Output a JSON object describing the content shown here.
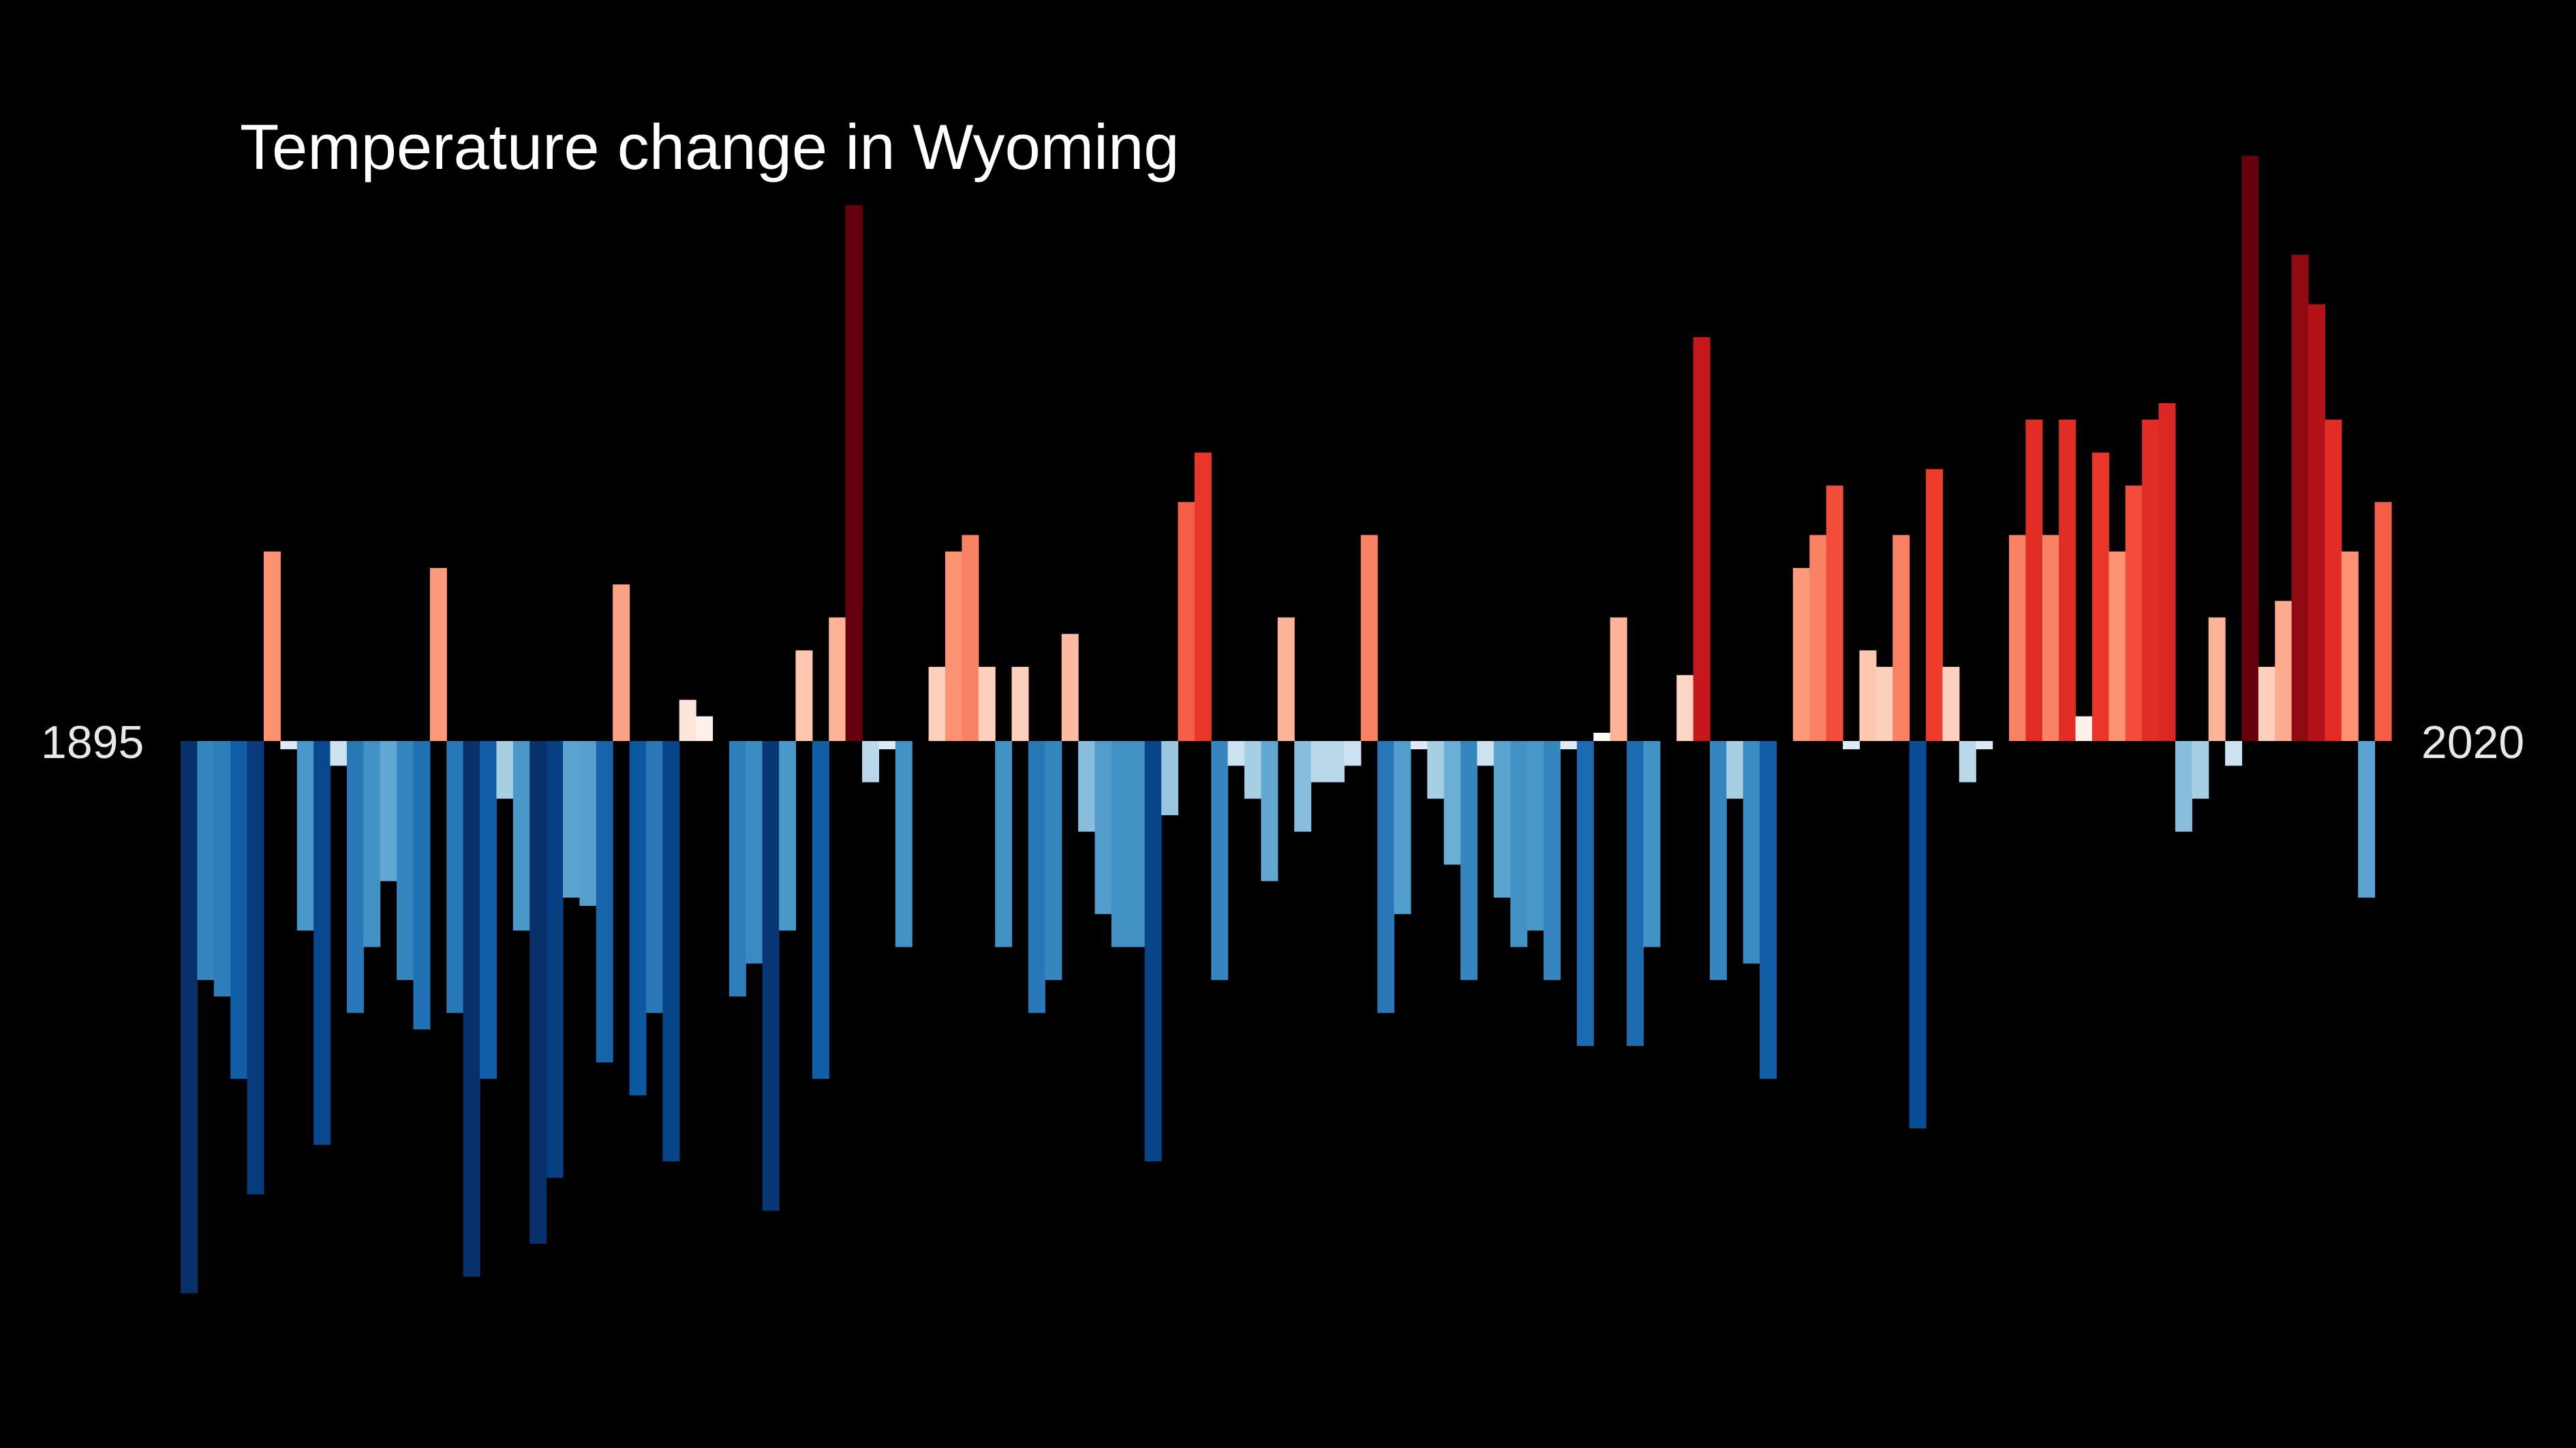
{
  "chart_data": {
    "type": "bar",
    "title": "Temperature change in Wyoming",
    "x_start_label": "1895",
    "x_end_label": "2020",
    "x_range": [
      1895,
      2020
    ],
    "y_range": [
      -6.7,
      7.1
    ],
    "colormap": "blue-to-red diverging",
    "grid": false,
    "legend": "none",
    "values": [
      -6.7,
      -2.9,
      -3.1,
      -4.1,
      -5.5,
      2.3,
      -0.1,
      -2.3,
      -4.9,
      -0.3,
      -3.3,
      -2.5,
      -1.7,
      -2.9,
      -3.5,
      2.1,
      -3.3,
      -6.5,
      -4.1,
      -0.7,
      -2.3,
      -6.1,
      -5.3,
      -1.9,
      -2.0,
      -3.9,
      1.9,
      -4.3,
      -3.3,
      -5.1,
      0.5,
      0.3,
      0.0,
      -3.1,
      -2.7,
      -5.7,
      -2.3,
      1.1,
      -4.1,
      1.5,
      6.5,
      -0.5,
      -0.1,
      -2.5,
      0.0,
      0.9,
      2.3,
      2.5,
      0.9,
      -2.5,
      0.9,
      -3.3,
      -2.9,
      1.3,
      -1.1,
      -2.1,
      -2.5,
      -2.5,
      -5.1,
      -0.9,
      2.9,
      3.5,
      -2.9,
      -0.3,
      -0.7,
      -1.7,
      1.5,
      -1.1,
      -0.5,
      -0.5,
      -0.3,
      2.5,
      -3.3,
      -2.1,
      -0.1,
      -0.7,
      -1.5,
      -2.9,
      -0.3,
      -1.9,
      -2.5,
      -2.3,
      -2.9,
      -0.1,
      -3.7,
      0.1,
      1.5,
      -3.7,
      -2.5,
      0.0,
      0.8,
      4.9,
      -2.9,
      -0.7,
      -2.7,
      -4.1,
      0.0,
      2.1,
      2.5,
      3.1,
      -0.1,
      1.1,
      0.9,
      2.5,
      -4.7,
      3.3,
      0.9,
      -0.5,
      -0.1,
      0.0,
      2.5,
      3.9,
      2.5,
      3.9,
      0.3,
      3.5,
      2.3,
      3.1,
      3.9,
      4.1,
      -1.1,
      -0.7,
      1.5,
      -0.3,
      7.1,
      0.9,
      1.7,
      5.9,
      5.3,
      3.9,
      2.3,
      -1.9,
      2.9
    ]
  }
}
